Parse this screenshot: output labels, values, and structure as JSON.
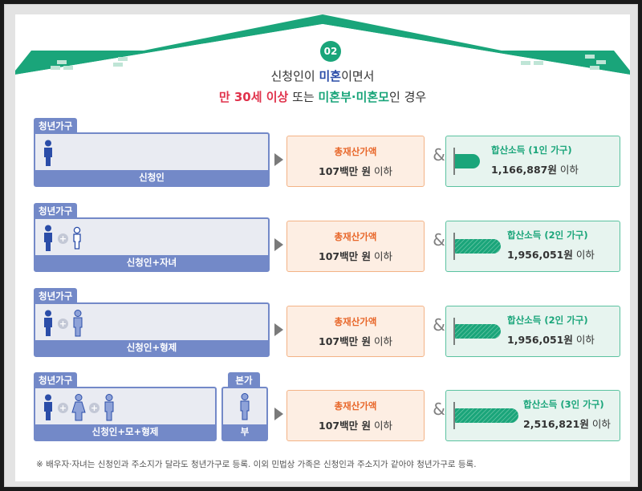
{
  "badge": "02",
  "headline": {
    "line1": [
      "신청인이 ",
      "미혼",
      "이면서"
    ],
    "line2": [
      "만 30세 이상",
      " 또는 ",
      "미혼부·미혼모",
      "인 경우"
    ]
  },
  "rows": [
    {
      "tag": "청년가구",
      "label": "신청인",
      "members": [
        "adult-person-icon"
      ],
      "assets_caption": "총재산가액",
      "assets_value_bold": "107백만 원",
      "assets_value_suffix": " 이하",
      "income_caption": "합산소득 (1인 가구)",
      "income_value_bold": "1,166,887원",
      "income_value_suffix": " 이하",
      "income_level": 1
    },
    {
      "tag": "청년가구",
      "label": "신청인+자녀",
      "members": [
        "adult-person-icon",
        "child-icon"
      ],
      "assets_caption": "총재산가액",
      "assets_value_bold": "107백만 원",
      "assets_value_suffix": " 이하",
      "income_caption": "합산소득 (2인 가구)",
      "income_value_bold": "1,956,051원",
      "income_value_suffix": " 이하",
      "income_level": 2
    },
    {
      "tag": "청년가구",
      "label": "신청인+형제",
      "members": [
        "adult-person-icon",
        "sibling-icon"
      ],
      "assets_caption": "총재산가액",
      "assets_value_bold": "107백만 원",
      "assets_value_suffix": " 이하",
      "income_caption": "합산소득 (2인 가구)",
      "income_value_bold": "1,956,051원",
      "income_value_suffix": " 이하",
      "income_level": 2
    },
    {
      "tag": "청년가구",
      "label": "신청인+모+형제",
      "members": [
        "adult-person-icon",
        "mother-icon",
        "sibling-icon"
      ],
      "side_tag": "본가",
      "side_label": "부",
      "assets_caption": "총재산가액",
      "assets_value_bold": "107백만 원",
      "assets_value_suffix": " 이하",
      "income_caption": "합산소득 (3인 가구)",
      "income_value_bold": "2,516,821원",
      "income_value_suffix": " 이하",
      "income_level": 3
    }
  ],
  "footnote": "※ 배우자·자녀는 신청인과 주소지가 달라도 청년가구로 등록. 이외 민법상 가족은 신청인과 주소지가 같아야 청년가구로 등록.",
  "colors": {
    "green": "#1aa57a",
    "blue": "#7389c8",
    "navy": "#2b4da8",
    "red": "#e0334c",
    "orange": "#e8672a"
  }
}
